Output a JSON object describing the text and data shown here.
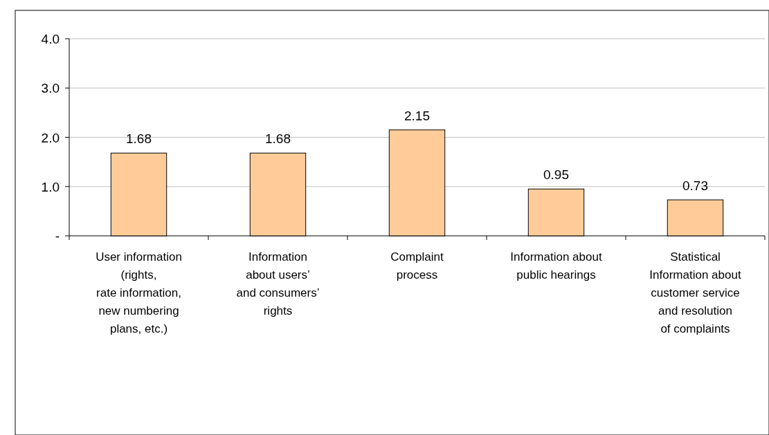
{
  "chart_data": {
    "type": "bar",
    "categories": [
      "User information\n(rights,\nrate information,\nnew numbering\nplans, etc.)",
      "Information\nabout users’\nand consumers’\nrights",
      "Complaint\nprocess",
      "Information about\npublic hearings",
      "Statistical\nInformation about\ncustomer service\nand resolution\nof complaints"
    ],
    "values": [
      1.68,
      1.68,
      2.15,
      0.95,
      0.73
    ],
    "color": "#ffcc99",
    "ylim": [
      0,
      4
    ],
    "yticks": [
      {
        "value": 0,
        "label": "-"
      },
      {
        "value": 1,
        "label": "1.0"
      },
      {
        "value": 2,
        "label": "2.0"
      },
      {
        "value": 3,
        "label": "3.0"
      },
      {
        "value": 4,
        "label": "4.0"
      }
    ],
    "grid": "y",
    "data_labels": true
  }
}
